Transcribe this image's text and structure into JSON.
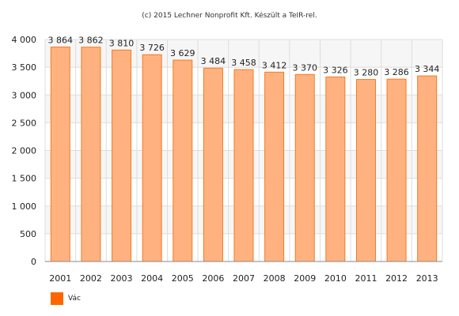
{
  "chart_data": {
    "type": "bar",
    "title": "(c) 2015 Lechner Nonprofit Kft. Készült a TeIR-rel.",
    "categories": [
      "2001",
      "2002",
      "2003",
      "2004",
      "2005",
      "2006",
      "2007",
      "2008",
      "2009",
      "2010",
      "2011",
      "2012",
      "2013"
    ],
    "values": [
      3864,
      3862,
      3810,
      3726,
      3629,
      3484,
      3458,
      3412,
      3370,
      3326,
      3280,
      3286,
      3344
    ],
    "value_labels": [
      "3 864",
      "3 862",
      "3 810",
      "3 726",
      "3 629",
      "3 484",
      "3 458",
      "3 412",
      "3 370",
      "3 326",
      "3 280",
      "3 286",
      "3 344"
    ],
    "ylim": [
      0,
      4000
    ],
    "yticks": [
      0,
      500,
      1000,
      1500,
      2000,
      2500,
      3000,
      3500,
      4000
    ],
    "ytick_labels": [
      "0",
      "500",
      "1 000",
      "1 500",
      "2 000",
      "2 500",
      "3 000",
      "3 500",
      "4 000"
    ],
    "grid": true,
    "legend_position": "bottom-left",
    "series": [
      {
        "name": "Vác"
      }
    ],
    "colors": {
      "bar_fill": "#FFB27F",
      "bar_stroke": "#F47A20",
      "legend_swatch": "#FF6600",
      "grid": "#DDDDDD",
      "band": "#F6F6F6"
    }
  }
}
